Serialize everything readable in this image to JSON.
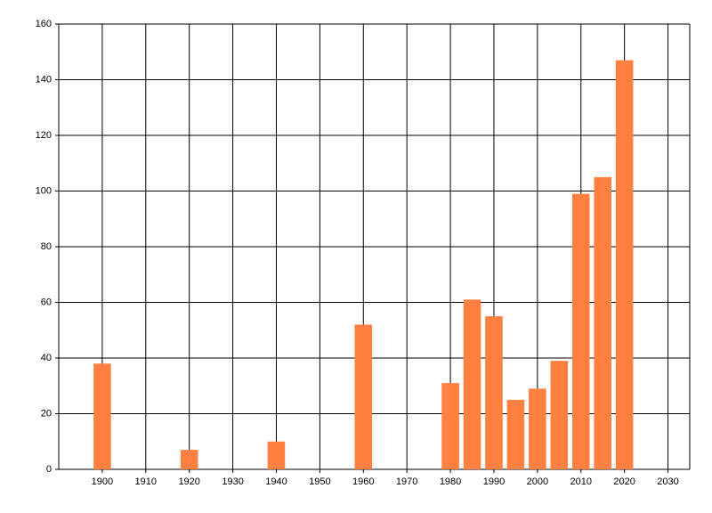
{
  "chart_data": {
    "type": "bar",
    "x": [
      1900,
      1920,
      1940,
      1960,
      1980,
      1985,
      1990,
      1995,
      2000,
      2005,
      2010,
      2015,
      2020
    ],
    "values": [
      38,
      7,
      10,
      52,
      31,
      61,
      55,
      25,
      29,
      39,
      99,
      105,
      147
    ],
    "color": "#ff8040",
    "xlim": [
      1890,
      2035
    ],
    "xticks": [
      1900,
      1910,
      1920,
      1930,
      1940,
      1950,
      1960,
      1970,
      1980,
      1990,
      2000,
      2010,
      2020,
      2030
    ],
    "ylim": [
      0,
      160
    ],
    "yticks": [
      0,
      20,
      40,
      60,
      80,
      100,
      120,
      140,
      160
    ],
    "grid": true
  }
}
